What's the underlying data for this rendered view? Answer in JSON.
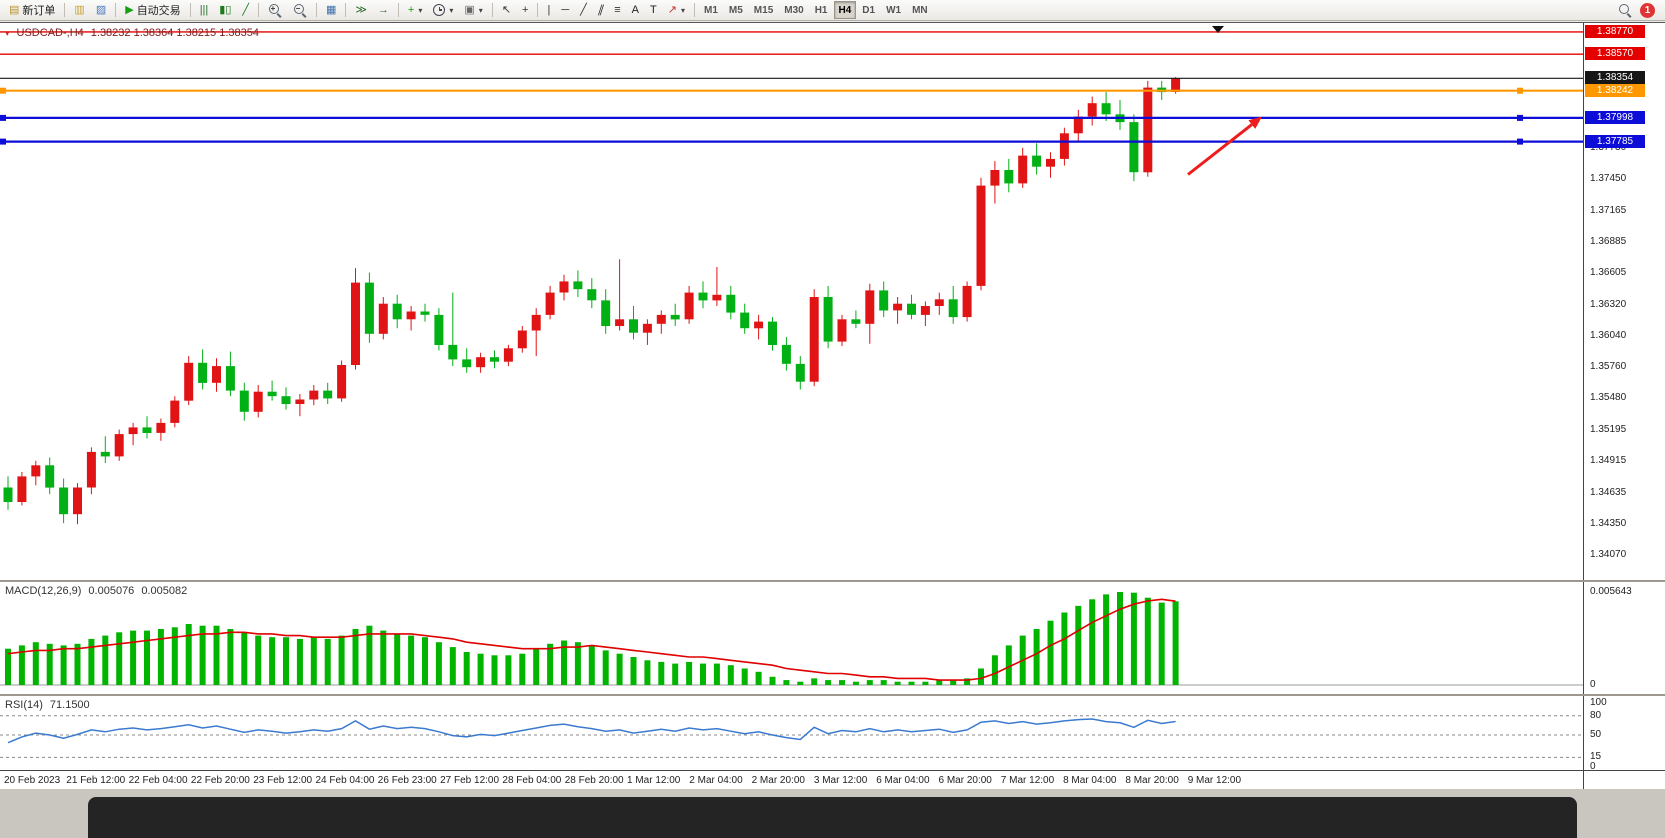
{
  "toolbar": {
    "items": [
      {
        "type": "button",
        "name": "new-order-button",
        "icon": "new-order",
        "label": "新订单"
      },
      {
        "type": "sep"
      },
      {
        "type": "button",
        "name": "charts-button",
        "icon": "charts"
      },
      {
        "type": "button",
        "name": "profiles-button",
        "icon": "profiles"
      },
      {
        "type": "sep"
      },
      {
        "type": "button",
        "name": "autotrading-button",
        "icon": "play",
        "label": "自动交易"
      },
      {
        "type": "sep"
      },
      {
        "type": "button",
        "name": "bar-chart-button",
        "icon": "bar-chart"
      },
      {
        "type": "button",
        "name": "candlestick-chart-button",
        "icon": "candles"
      },
      {
        "type": "button",
        "name": "line-chart-button",
        "icon": "line-chart"
      },
      {
        "type": "sep"
      },
      {
        "type": "button",
        "name": "zoom-in-button",
        "icon": "zoom-in"
      },
      {
        "type": "button",
        "name": "zoom-out-button",
        "icon": "zoom-out"
      },
      {
        "type": "sep"
      },
      {
        "type": "button",
        "name": "tile-windows-button",
        "icon": "tile"
      },
      {
        "type": "sep"
      },
      {
        "type": "button",
        "name": "auto-scroll-button",
        "icon": "auto-scroll"
      },
      {
        "type": "button",
        "name": "chart-shift-button",
        "icon": "chart-shift"
      },
      {
        "type": "sep"
      },
      {
        "type": "button",
        "name": "indicators-button",
        "icon": "indicators",
        "dropdown": true
      },
      {
        "type": "button",
        "name": "periods-button",
        "icon": "clock",
        "dropdown": true
      },
      {
        "type": "button",
        "name": "templates-button",
        "icon": "templates",
        "dropdown": true
      },
      {
        "type": "sep"
      },
      {
        "type": "button",
        "name": "cursor-button",
        "icon": "cursor"
      },
      {
        "type": "button",
        "name": "crosshair-button",
        "icon": "crosshair"
      },
      {
        "type": "sep"
      },
      {
        "type": "button",
        "name": "vertical-line-button",
        "icon": "vline"
      },
      {
        "type": "button",
        "name": "horizontal-line-button",
        "icon": "hline"
      },
      {
        "type": "button",
        "name": "trendline-button",
        "icon": "trendline"
      },
      {
        "type": "button",
        "name": "equidistant-channel-button",
        "icon": "channel"
      },
      {
        "type": "button",
        "name": "fibonacci-button",
        "icon": "fibonacci"
      },
      {
        "type": "button",
        "name": "text-button",
        "label": "A"
      },
      {
        "type": "button",
        "name": "label-button",
        "label": "T"
      },
      {
        "type": "button",
        "name": "arrows-button",
        "icon": "arrows",
        "dropdown": true
      },
      {
        "type": "sep"
      },
      {
        "type": "tf",
        "name": "timeframe-m1",
        "label": "M1"
      },
      {
        "type": "tf",
        "name": "timeframe-m5",
        "label": "M5"
      },
      {
        "type": "tf",
        "name": "timeframe-m15",
        "label": "M15"
      },
      {
        "type": "tf",
        "name": "timeframe-m30",
        "label": "M30"
      },
      {
        "type": "tf",
        "name": "timeframe-h1",
        "label": "H1"
      },
      {
        "type": "tf",
        "name": "timeframe-h4",
        "label": "H4",
        "active": true
      },
      {
        "type": "tf",
        "name": "timeframe-d1",
        "label": "D1"
      },
      {
        "type": "tf",
        "name": "timeframe-w1",
        "label": "W1"
      },
      {
        "type": "tf",
        "name": "timeframe-mn",
        "label": "MN"
      },
      {
        "type": "spacer"
      },
      {
        "type": "button",
        "name": "search-button",
        "icon": "search"
      },
      {
        "type": "badge",
        "name": "notifications-badge",
        "label": "1"
      }
    ]
  },
  "chart": {
    "symbol_period": "USDCAD-,H4",
    "ohlc": "1.38232 1.38364 1.38215 1.38354",
    "lines": [
      {
        "name": "resistance-line-1",
        "price": 1.3877,
        "label": "1.38770",
        "color": "#e50000",
        "width": 1.4
      },
      {
        "name": "resistance-line-2",
        "price": 1.3857,
        "label": "1.38570",
        "color": "#e50000",
        "width": 1.4
      },
      {
        "name": "bid-price-line",
        "price": 1.38354,
        "label": "1.38354",
        "color": "#161616",
        "width": 1.1
      },
      {
        "name": "order-level-line",
        "price": 1.38242,
        "label": "1.38242",
        "color": "#ff9800",
        "width": 2.2,
        "handles": true
      },
      {
        "name": "support-line-1",
        "price": 1.37998,
        "label": "1.37998",
        "color": "#0d0dd8",
        "width": 2.2,
        "handles": true
      },
      {
        "name": "support-line-2",
        "price": 1.37785,
        "label": "1.37785",
        "color": "#0d0dd8",
        "width": 2.2,
        "handles": true
      }
    ]
  },
  "macd_panel": {
    "label": "MACD(12,26,9)",
    "value": "0.005076",
    "signal": "0.005082",
    "scale_max": "0.005643",
    "scale_zero": "0"
  },
  "rsi_panel": {
    "label": "RSI(14)",
    "value": "71.1500",
    "levels": [
      "100",
      "80",
      "50",
      "15",
      "0"
    ],
    "dashed_levels": [
      80,
      50,
      15
    ]
  },
  "chart_data": {
    "type": "candlestick",
    "symbol": "USDCAD",
    "period": "H4",
    "price_range": [
      1.3385,
      1.3885
    ],
    "up_color": "#e01414",
    "down_color": "#00b014",
    "price_ticks": [
      "1.37730",
      "1.37450",
      "1.37165",
      "1.36885",
      "1.36605",
      "1.36320",
      "1.36040",
      "1.35760",
      "1.35480",
      "1.35195",
      "1.34915",
      "1.34635",
      "1.34350",
      "1.34070"
    ],
    "x_labels": [
      "20 Feb 2023",
      "21 Feb 12:00",
      "22 Feb 04:00",
      "22 Feb 20:00",
      "23 Feb 12:00",
      "24 Feb 04:00",
      "26 Feb 23:00",
      "27 Feb 12:00",
      "28 Feb 04:00",
      "28 Feb 20:00",
      "1 Mar 12:00",
      "2 Mar 04:00",
      "2 Mar 20:00",
      "3 Mar 12:00",
      "6 Mar 04:00",
      "6 Mar 20:00",
      "7 Mar 12:00",
      "8 Mar 04:00",
      "8 Mar 20:00",
      "9 Mar 12:00"
    ],
    "candles": [
      [
        1.3468,
        1.3478,
        1.3448,
        1.3455
      ],
      [
        1.3455,
        1.3482,
        1.3452,
        1.3478
      ],
      [
        1.3478,
        1.3492,
        1.347,
        1.3488
      ],
      [
        1.3488,
        1.3495,
        1.3462,
        1.3468
      ],
      [
        1.3468,
        1.3476,
        1.3436,
        1.3444
      ],
      [
        1.3444,
        1.3472,
        1.3435,
        1.3468
      ],
      [
        1.3468,
        1.3504,
        1.3462,
        1.35
      ],
      [
        1.35,
        1.3514,
        1.349,
        1.3496
      ],
      [
        1.3496,
        1.352,
        1.3492,
        1.3516
      ],
      [
        1.3516,
        1.3526,
        1.3506,
        1.3522
      ],
      [
        1.3522,
        1.3532,
        1.3512,
        1.3517
      ],
      [
        1.3517,
        1.353,
        1.351,
        1.3526
      ],
      [
        1.3526,
        1.355,
        1.3522,
        1.3546
      ],
      [
        1.3546,
        1.3586,
        1.3542,
        1.358
      ],
      [
        1.358,
        1.3592,
        1.3556,
        1.3562
      ],
      [
        1.3562,
        1.3584,
        1.3554,
        1.3577
      ],
      [
        1.3577,
        1.359,
        1.355,
        1.3555
      ],
      [
        1.3555,
        1.3562,
        1.3528,
        1.3536
      ],
      [
        1.3536,
        1.356,
        1.3531,
        1.3554
      ],
      [
        1.3554,
        1.3564,
        1.3546,
        1.355
      ],
      [
        1.355,
        1.3558,
        1.3538,
        1.3543
      ],
      [
        1.3543,
        1.3552,
        1.3532,
        1.3547
      ],
      [
        1.3547,
        1.356,
        1.3542,
        1.3555
      ],
      [
        1.3555,
        1.3562,
        1.3543,
        1.3548
      ],
      [
        1.3548,
        1.3582,
        1.3545,
        1.3578
      ],
      [
        1.3578,
        1.3665,
        1.3574,
        1.3652
      ],
      [
        1.3652,
        1.3661,
        1.3598,
        1.3606
      ],
      [
        1.3606,
        1.3639,
        1.3601,
        1.3633
      ],
      [
        1.3633,
        1.3641,
        1.3611,
        1.3619
      ],
      [
        1.3619,
        1.3631,
        1.3609,
        1.3626
      ],
      [
        1.3626,
        1.3633,
        1.3617,
        1.3623
      ],
      [
        1.3623,
        1.3629,
        1.3591,
        1.3596
      ],
      [
        1.3596,
        1.3643,
        1.3577,
        1.3583
      ],
      [
        1.3583,
        1.3593,
        1.3571,
        1.3576
      ],
      [
        1.3576,
        1.3589,
        1.3571,
        1.3585
      ],
      [
        1.3585,
        1.3591,
        1.3575,
        1.3581
      ],
      [
        1.3581,
        1.3596,
        1.3577,
        1.3593
      ],
      [
        1.3593,
        1.3613,
        1.3589,
        1.3609
      ],
      [
        1.3609,
        1.3629,
        1.3586,
        1.3623
      ],
      [
        1.3623,
        1.3649,
        1.3619,
        1.3643
      ],
      [
        1.3643,
        1.3659,
        1.3636,
        1.3653
      ],
      [
        1.3653,
        1.3663,
        1.3639,
        1.3646
      ],
      [
        1.3646,
        1.3656,
        1.3629,
        1.3636
      ],
      [
        1.3636,
        1.3646,
        1.3606,
        1.3613
      ],
      [
        1.3613,
        1.3673,
        1.3609,
        1.3619
      ],
      [
        1.3619,
        1.3631,
        1.3601,
        1.3607
      ],
      [
        1.3607,
        1.3619,
        1.3596,
        1.3615
      ],
      [
        1.3615,
        1.3627,
        1.3606,
        1.3623
      ],
      [
        1.3623,
        1.3633,
        1.3613,
        1.3619
      ],
      [
        1.3619,
        1.3649,
        1.3615,
        1.3643
      ],
      [
        1.3643,
        1.3653,
        1.3629,
        1.3636
      ],
      [
        1.3636,
        1.3666,
        1.3631,
        1.3641
      ],
      [
        1.3641,
        1.3649,
        1.3619,
        1.3625
      ],
      [
        1.3625,
        1.3633,
        1.3606,
        1.3611
      ],
      [
        1.3611,
        1.3623,
        1.3601,
        1.3617
      ],
      [
        1.3617,
        1.3621,
        1.3591,
        1.3596
      ],
      [
        1.3596,
        1.3603,
        1.3573,
        1.3579
      ],
      [
        1.3579,
        1.3586,
        1.3556,
        1.3563
      ],
      [
        1.3563,
        1.3646,
        1.3559,
        1.3639
      ],
      [
        1.3639,
        1.3649,
        1.3593,
        1.3599
      ],
      [
        1.3599,
        1.3623,
        1.3595,
        1.3619
      ],
      [
        1.3619,
        1.3627,
        1.3611,
        1.3615
      ],
      [
        1.3615,
        1.3651,
        1.3597,
        1.3645
      ],
      [
        1.3645,
        1.3653,
        1.3621,
        1.3627
      ],
      [
        1.3627,
        1.3639,
        1.3615,
        1.3633
      ],
      [
        1.3633,
        1.3641,
        1.3619,
        1.3623
      ],
      [
        1.3623,
        1.3635,
        1.3613,
        1.3631
      ],
      [
        1.3631,
        1.3643,
        1.3623,
        1.3637
      ],
      [
        1.3637,
        1.3649,
        1.3615,
        1.3621
      ],
      [
        1.3621,
        1.3653,
        1.3617,
        1.3649
      ],
      [
        1.3649,
        1.3746,
        1.3645,
        1.3739
      ],
      [
        1.3739,
        1.3761,
        1.3723,
        1.3753
      ],
      [
        1.3753,
        1.3763,
        1.3733,
        1.3741
      ],
      [
        1.3741,
        1.3773,
        1.3737,
        1.3766
      ],
      [
        1.3766,
        1.3777,
        1.3749,
        1.3756
      ],
      [
        1.3756,
        1.3769,
        1.3746,
        1.3763
      ],
      [
        1.3763,
        1.3791,
        1.3757,
        1.3786
      ],
      [
        1.3786,
        1.3807,
        1.3779,
        1.3801
      ],
      [
        1.3801,
        1.3819,
        1.3793,
        1.3813
      ],
      [
        1.3813,
        1.3823,
        1.3797,
        1.3803
      ],
      [
        1.3803,
        1.3816,
        1.3789,
        1.3796
      ],
      [
        1.3796,
        1.3803,
        1.3743,
        1.3751
      ],
      [
        1.3751,
        1.3833,
        1.3747,
        1.3827
      ],
      [
        1.3827,
        1.3833,
        1.3816,
        1.3823
      ],
      [
        1.38232,
        1.38364,
        1.38215,
        1.38354
      ]
    ],
    "macd": {
      "max": 0.005643,
      "histogram": [
        0.0022,
        0.0024,
        0.0026,
        0.0025,
        0.0024,
        0.0025,
        0.0028,
        0.003,
        0.0032,
        0.0033,
        0.0033,
        0.0034,
        0.0035,
        0.0037,
        0.0036,
        0.0036,
        0.0034,
        0.0032,
        0.003,
        0.0029,
        0.0029,
        0.0028,
        0.0029,
        0.0028,
        0.003,
        0.0034,
        0.0036,
        0.0033,
        0.0031,
        0.003,
        0.0029,
        0.0026,
        0.0023,
        0.002,
        0.0019,
        0.0018,
        0.0018,
        0.0019,
        0.0022,
        0.0025,
        0.0027,
        0.0026,
        0.0024,
        0.0021,
        0.0019,
        0.0017,
        0.0015,
        0.0014,
        0.0013,
        0.0014,
        0.0013,
        0.0013,
        0.0012,
        0.001,
        0.0008,
        0.0005,
        0.0003,
        0.0002,
        0.0004,
        0.0003,
        0.0003,
        0.0002,
        0.0003,
        0.0003,
        0.0002,
        0.0002,
        0.0002,
        0.0003,
        0.0003,
        0.0004,
        0.001,
        0.0018,
        0.0024,
        0.003,
        0.0034,
        0.0039,
        0.0044,
        0.0048,
        0.0052,
        0.0055,
        0.00564,
        0.0056,
        0.0053,
        0.005,
        0.005076
      ],
      "signal": [
        0.0019,
        0.002,
        0.0021,
        0.0021,
        0.0022,
        0.0022,
        0.0023,
        0.0024,
        0.0025,
        0.0026,
        0.0027,
        0.0028,
        0.0029,
        0.003,
        0.0031,
        0.0031,
        0.0032,
        0.0032,
        0.0031,
        0.0031,
        0.003,
        0.003,
        0.0029,
        0.0029,
        0.0029,
        0.003,
        0.0031,
        0.0031,
        0.0031,
        0.0031,
        0.003,
        0.0029,
        0.0028,
        0.0026,
        0.0025,
        0.0024,
        0.0023,
        0.0022,
        0.0022,
        0.0022,
        0.0023,
        0.0023,
        0.0024,
        0.0023,
        0.0022,
        0.0021,
        0.002,
        0.0019,
        0.0018,
        0.0017,
        0.0017,
        0.0016,
        0.0015,
        0.0014,
        0.0013,
        0.0012,
        0.001,
        0.0009,
        0.0008,
        0.0007,
        0.0007,
        0.0006,
        0.0005,
        0.0005,
        0.0004,
        0.0004,
        0.0004,
        0.0003,
        0.0003,
        0.0003,
        0.0004,
        0.0007,
        0.0011,
        0.0015,
        0.0019,
        0.0024,
        0.0028,
        0.0033,
        0.0038,
        0.0042,
        0.0046,
        0.0049,
        0.0051,
        0.0052,
        0.005082
      ]
    },
    "rsi": [
      38,
      47,
      53,
      50,
      45,
      51,
      58,
      55,
      59,
      61,
      58,
      60,
      63,
      66,
      61,
      64,
      59,
      54,
      58,
      56,
      53,
      55,
      58,
      56,
      60,
      72,
      59,
      64,
      60,
      62,
      60,
      55,
      49,
      47,
      51,
      49,
      53,
      57,
      61,
      65,
      67,
      63,
      60,
      56,
      58,
      53,
      56,
      59,
      56,
      61,
      58,
      60,
      56,
      52,
      55,
      50,
      46,
      43,
      62,
      52,
      57,
      55,
      60,
      55,
      58,
      55,
      57,
      59,
      54,
      58,
      70,
      72,
      68,
      71,
      67,
      69,
      72,
      74,
      75,
      71,
      69,
      62,
      73,
      68,
      71.15
    ],
    "arrow": {
      "from": [
        1188,
        1.3749
      ],
      "to": [
        1262,
        1.3801
      ],
      "color": "#ee1c1c"
    }
  }
}
